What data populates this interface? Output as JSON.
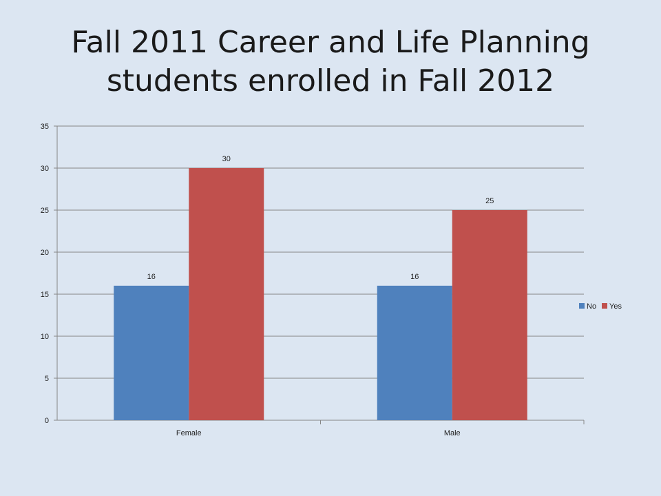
{
  "slide": {
    "title_line1": "Fall 2011 Career and Life Planning",
    "title_line2": "students enrolled in Fall 2012"
  },
  "chart_data": {
    "type": "bar",
    "categories": [
      "Female",
      "Male"
    ],
    "series": [
      {
        "name": "No",
        "values": [
          16,
          16
        ],
        "color": "#4f81bd"
      },
      {
        "name": "Yes",
        "values": [
          30,
          25
        ],
        "color": "#c0504d"
      }
    ],
    "ylim": [
      0,
      35
    ],
    "yticks": [
      0,
      5,
      10,
      15,
      20,
      25,
      30,
      35
    ],
    "grid": true,
    "legend_position": "right",
    "data_labels": true
  }
}
